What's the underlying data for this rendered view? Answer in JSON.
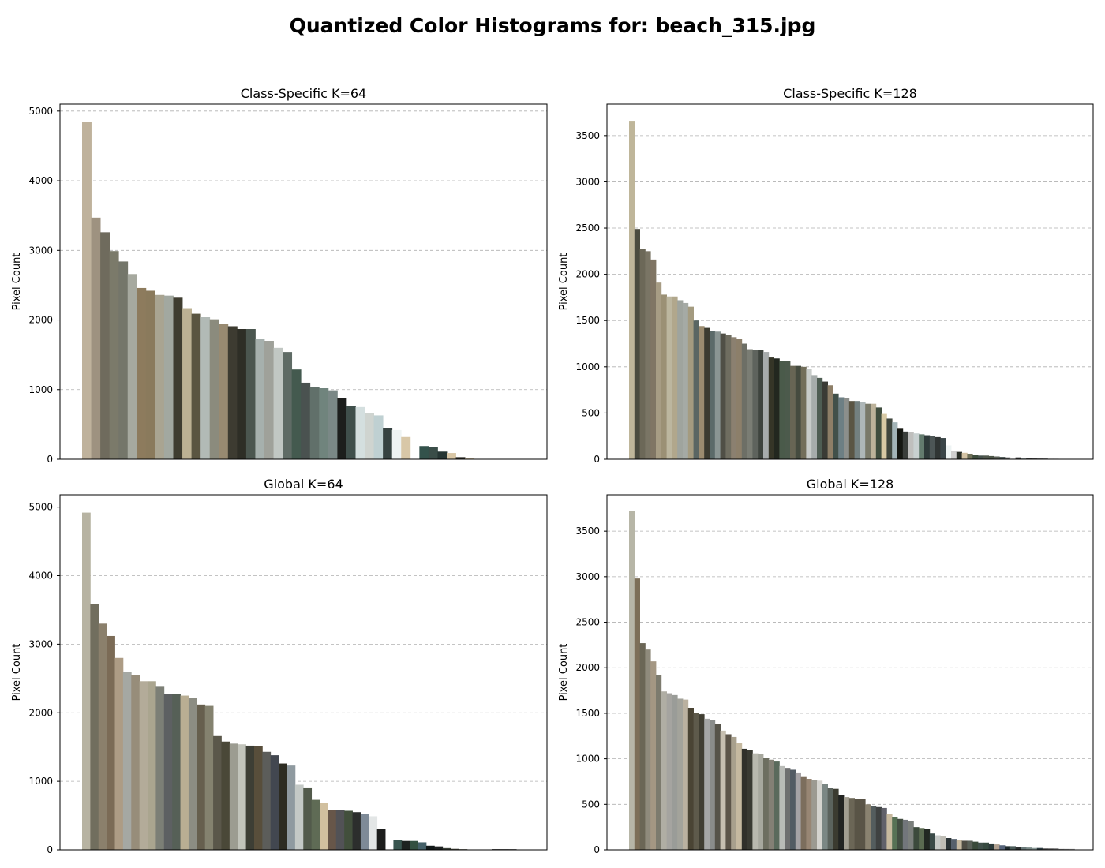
{
  "figure": {
    "suptitle": "Quantized Color Histograms for: beach_315.jpg"
  },
  "chart_data": [
    {
      "type": "bar",
      "title": "Class-Specific K=64",
      "xlabel": "",
      "ylabel": "Pixel Count",
      "ylim": [
        0,
        5100
      ],
      "yticks": [
        0,
        1000,
        2000,
        3000,
        4000,
        5000
      ],
      "grid": "y-dashed",
      "values": [
        4840,
        3470,
        3260,
        2990,
        2840,
        2660,
        2460,
        2420,
        2360,
        2350,
        2320,
        2170,
        2090,
        2040,
        2010,
        1940,
        1910,
        1870,
        1870,
        1730,
        1700,
        1600,
        1540,
        1290,
        1100,
        1040,
        1020,
        990,
        880,
        760,
        750,
        660,
        630,
        450,
        420,
        320,
        0,
        190,
        170,
        110,
        90,
        30,
        15,
        5,
        0,
        0,
        0,
        0
      ],
      "colors": [
        "#bfb29c",
        "#9e9280",
        "#6f6b5d",
        "#7b7a6a",
        "#74766a",
        "#a6a99f",
        "#8d7b5d",
        "#8a7a5c",
        "#a9a491",
        "#a2a8a0",
        "#3f3d30",
        "#bcb193",
        "#5a5541",
        "#b2bab6",
        "#8b8b7d",
        "#988a71",
        "#3d3b31",
        "#2e2e26",
        "#4b564f",
        "#a6b0ad",
        "#9fa19a",
        "#c1c7c3",
        "#5f6b65",
        "#445a4f",
        "#4a5250",
        "#61706a",
        "#70847d",
        "#7a8886",
        "#1c1e1c",
        "#3f4f4b",
        "#d4dfdf",
        "#cfd4d0",
        "#bfd0d2",
        "#364241",
        "#eef3f3",
        "#d8c7a7",
        "#ffffff",
        "#33524b",
        "#3a4d48",
        "#263634",
        "#d9c7a6",
        "#2c2c26",
        "#d4c4a4",
        "#e8e8e0",
        "#ffffff",
        "#ffffff",
        "#ffffff",
        "#ffffff"
      ]
    },
    {
      "type": "bar",
      "title": "Class-Specific K=128",
      "xlabel": "",
      "ylabel": "Pixel Count",
      "ylim": [
        0,
        3840
      ],
      "yticks": [
        0,
        500,
        1000,
        1500,
        2000,
        2500,
        3000,
        3500
      ],
      "grid": "y-dashed",
      "values": [
        3660,
        2490,
        2270,
        2250,
        2160,
        1910,
        1780,
        1760,
        1760,
        1720,
        1690,
        1650,
        1500,
        1440,
        1420,
        1390,
        1380,
        1360,
        1340,
        1320,
        1300,
        1250,
        1190,
        1180,
        1180,
        1160,
        1100,
        1090,
        1060,
        1060,
        1010,
        1010,
        1000,
        980,
        910,
        880,
        840,
        800,
        710,
        670,
        660,
        630,
        630,
        620,
        600,
        600,
        560,
        490,
        440,
        400,
        330,
        300,
        290,
        280,
        270,
        260,
        250,
        240,
        230,
        150,
        90,
        80,
        70,
        60,
        50,
        40,
        40,
        35,
        30,
        25,
        20,
        15,
        20,
        15,
        10,
        10,
        8,
        8,
        5,
        5
      ],
      "colors": [
        "#bfb69a",
        "#4b4b3f",
        "#6c6858",
        "#7a7565",
        "#807564",
        "#a79c84",
        "#9b9075",
        "#bcb69f",
        "#b1a78c",
        "#9fa49e",
        "#a5aaa5",
        "#a49b80",
        "#5a6663",
        "#9b8b6f",
        "#3c3b30",
        "#5b6a69",
        "#8a9593",
        "#504f46",
        "#6f6d60",
        "#8b8070",
        "#8c7f6a",
        "#6d6f66",
        "#7a7d74",
        "#5e635d",
        "#3e443e",
        "#a7acac",
        "#353527",
        "#22271f",
        "#4a5a4a",
        "#4c5a4c",
        "#676554",
        "#454b3f",
        "#726e5a",
        "#c7cbc9",
        "#a6acab",
        "#4e5d53",
        "#3a3b35",
        "#8d7e67",
        "#41504a",
        "#6d7f84",
        "#8c8f8c",
        "#5a5544",
        "#738080",
        "#aeb7b8",
        "#7a7a6a",
        "#bcb29a",
        "#3f4d3e",
        "#d7c9a4",
        "#3f463d",
        "#a3b4b7",
        "#151711",
        "#3a3e3a",
        "#bfbfbd",
        "#c8d0d0",
        "#637b6e",
        "#2e3a3a",
        "#4d5656",
        "#303534",
        "#3a4548",
        "#eef4f4",
        "#d0d0d0",
        "#2a2f28",
        "#d4c3a4",
        "#6f7059",
        "#3e4e3e",
        "#46524c",
        "#50584d",
        "#4c5548",
        "#5a6057",
        "#4a5552",
        "#6b6b6b",
        "#f0f0f0",
        "#3c3c3c",
        "#9aa3a3",
        "#4a4a4a",
        "#5a5a5a",
        "#6a6a6a",
        "#7a7a7a",
        "#8a8a8a",
        "#9a9a9a"
      ]
    },
    {
      "type": "bar",
      "title": "Global K=64",
      "xlabel": "",
      "ylabel": "Pixel Count",
      "ylim": [
        0,
        5180
      ],
      "yticks": [
        0,
        1000,
        2000,
        3000,
        4000,
        5000
      ],
      "grid": "y-dashed",
      "values": [
        4920,
        3590,
        3300,
        3120,
        2800,
        2590,
        2550,
        2460,
        2460,
        2390,
        2270,
        2270,
        2250,
        2220,
        2120,
        2100,
        1660,
        1580,
        1550,
        1540,
        1520,
        1510,
        1430,
        1380,
        1260,
        1230,
        950,
        910,
        730,
        680,
        580,
        580,
        570,
        550,
        520,
        490,
        300,
        0,
        140,
        130,
        130,
        110,
        60,
        50,
        25,
        15,
        10,
        5,
        5,
        0,
        10,
        10,
        10
      ],
      "colors": [
        "#b7b3a2",
        "#716e5e",
        "#8b806c",
        "#7b6b56",
        "#ad9c85",
        "#a5a8a3",
        "#978d7a",
        "#b3ab99",
        "#aaa58f",
        "#7c7f76",
        "#5d6062",
        "#566057",
        "#b9ae93",
        "#8c8d83",
        "#665f4e",
        "#84826f",
        "#5a574a",
        "#4a4838",
        "#9c9c91",
        "#c2c4bb",
        "#3d3e35",
        "#584e3b",
        "#5c5d5a",
        "#424750",
        "#2d2c22",
        "#8f9aa0",
        "#c4c9c6",
        "#525a4b",
        "#5f6b55",
        "#d1c09f",
        "#675649",
        "#525256",
        "#424f3c",
        "#2c2e2d",
        "#7e8a97",
        "#e3e6e6",
        "#1c1d1c",
        "#ffffff",
        "#395650",
        "#1d2220",
        "#335040",
        "#446068",
        "#111818",
        "#1c2020",
        "#3a4038",
        "#4a4a40",
        "#5a5a50",
        "#6a6a60",
        "#7a7a70",
        "#ffffff",
        "#2a2a2a",
        "#3a3a3a",
        "#4a4a4a"
      ]
    },
    {
      "type": "bar",
      "title": "Global K=128",
      "xlabel": "",
      "ylabel": "Pixel Count",
      "ylim": [
        0,
        3900
      ],
      "yticks": [
        0,
        500,
        1000,
        1500,
        2000,
        2500,
        3000,
        3500
      ],
      "grid": "y-dashed",
      "values": [
        3720,
        2980,
        2270,
        2200,
        2070,
        1920,
        1740,
        1720,
        1700,
        1660,
        1650,
        1560,
        1500,
        1490,
        1440,
        1430,
        1380,
        1310,
        1270,
        1240,
        1170,
        1110,
        1100,
        1060,
        1050,
        1010,
        990,
        970,
        920,
        900,
        880,
        850,
        800,
        780,
        770,
        760,
        720,
        680,
        670,
        600,
        580,
        570,
        560,
        560,
        500,
        480,
        470,
        460,
        390,
        360,
        340,
        330,
        320,
        250,
        240,
        230,
        180,
        160,
        150,
        130,
        120,
        110,
        100,
        100,
        90,
        80,
        80,
        70,
        60,
        50,
        40,
        40,
        30,
        30,
        25,
        20,
        20,
        15,
        15,
        15,
        10,
        10,
        10
      ],
      "colors": [
        "#b7b6a7",
        "#7d6f58",
        "#6b6656",
        "#8f8a7c",
        "#a49783",
        "#7d7b6e",
        "#b0aea4",
        "#a5a4a0",
        "#9a9c98",
        "#a3a39b",
        "#bab1a0",
        "#4a4434",
        "#5e5a4b",
        "#403e32",
        "#a5a6a5",
        "#8a8d8b",
        "#56544a",
        "#c6bfb0",
        "#5c5549",
        "#a8a08d",
        "#c5b9a0",
        "#30302a",
        "#393a32",
        "#b8b8ae",
        "#a7a89e",
        "#6d6e60",
        "#838075",
        "#5a6a5c",
        "#b9bbb7",
        "#6f6f70",
        "#525b63",
        "#a5a2a5",
        "#7c6e5d",
        "#988674",
        "#9c9a91",
        "#d4d3ce",
        "#7b8784",
        "#5b635d",
        "#3b3b30",
        "#222422",
        "#a29e91",
        "#6b6656",
        "#595446",
        "#5a5447",
        "#8a8270",
        "#545d5e",
        "#3f4242",
        "#61616a",
        "#c7b99e",
        "#577155",
        "#434e42",
        "#72767b",
        "#7b7f7c",
        "#3c4a3c",
        "#5a6a50",
        "#222822",
        "#3a4a48",
        "#c6cac8",
        "#bfbdb5",
        "#2a3335",
        "#56606c",
        "#c5b8a0",
        "#4e4c44",
        "#5a6058",
        "#3a4a3a",
        "#40504a",
        "#364a40",
        "#2c3a3a",
        "#b0a090",
        "#56647a",
        "#1e2a2c",
        "#4a5a58",
        "#2c3030",
        "#6a7a7a",
        "#7a8a88",
        "#8a9a98",
        "#2e3e42",
        "#4a4a4a",
        "#5a5a5a",
        "#6a6a6a",
        "#7a7a7a",
        "#8a8a8a",
        "#9a9a9a"
      ]
    }
  ]
}
